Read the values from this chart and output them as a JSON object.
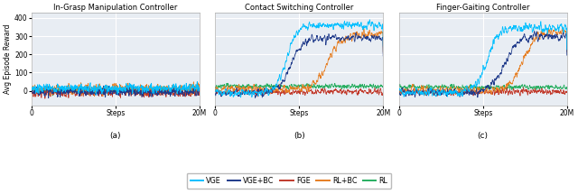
{
  "titles": [
    "In-Grasp Manipulation Controller",
    "Contact Switching Controller",
    "Finger-Gaiting Controller"
  ],
  "subtitles": [
    "(a)",
    "(b)",
    "(c)"
  ],
  "ylabel": "Avg Episode Reward",
  "xlim": [
    0,
    20000000
  ],
  "xticks": [
    0,
    10000000,
    20000000
  ],
  "xticklabels": [
    "0",
    "Steps",
    "20M"
  ],
  "ylim": [
    -80,
    430
  ],
  "yticks": [
    0,
    100,
    200,
    300,
    400
  ],
  "colors": {
    "VGE": "#00BFFF",
    "VGE+BC": "#1F3A8A",
    "FGE": "#C0392B",
    "RL+BC": "#E67E22",
    "RL": "#27AE60"
  },
  "legend_labels": [
    "VGE",
    "VGE+BC",
    "FGE",
    "RL+BC",
    "RL"
  ],
  "background_color": "#E8EDF3",
  "grid_color": "white",
  "n_steps": 1000,
  "seed": 7
}
